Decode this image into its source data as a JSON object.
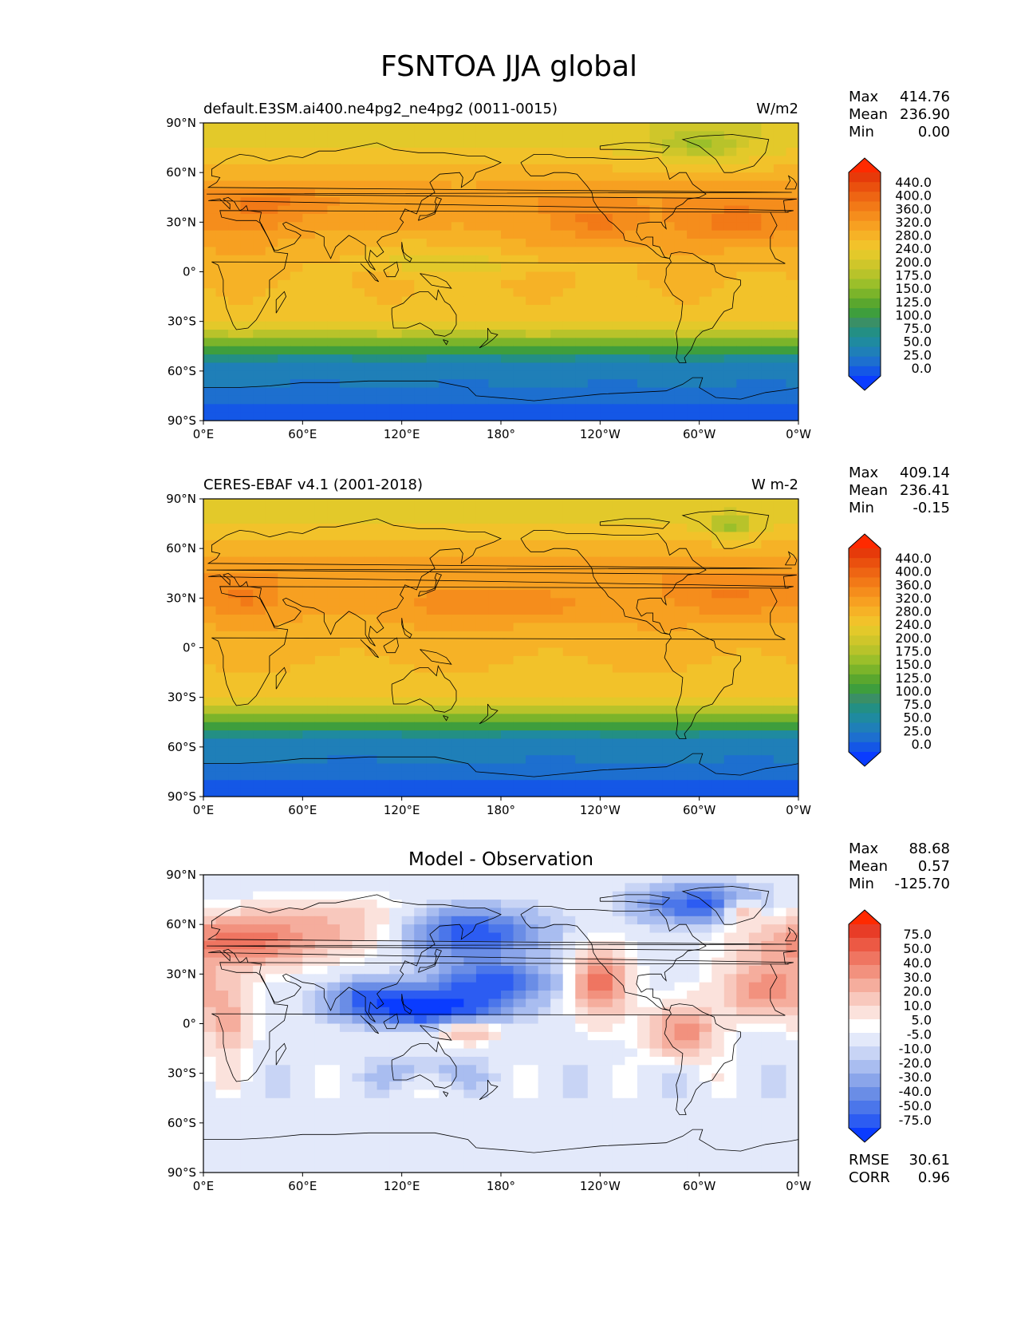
{
  "figure": {
    "title": "FSNTOA JJA global",
    "palette": {
      "standard": [
        "#0a3cff",
        "#1457e6",
        "#1d6fcf",
        "#1f7fb8",
        "#1f8aa0",
        "#238f84",
        "#3a8f66",
        "#3e9e3d",
        "#5aa72e",
        "#7bb42a",
        "#9bbf2a",
        "#b8c32a",
        "#cfc62a",
        "#e3c92a",
        "#f2c22a",
        "#f6b226",
        "#f7a021",
        "#f58d1c",
        "#f27917",
        "#ee6513",
        "#ea500e",
        "#e63a0a",
        "#ff2a00"
      ],
      "diff": [
        "#0a3cff",
        "#2c5cf2",
        "#4b76ea",
        "#6a8de6",
        "#8aa5ea",
        "#a9bdf0",
        "#c8d4f5",
        "#e3e9fa",
        "#ffffff",
        "#fbe2dc",
        "#f8c8bd",
        "#f5ad9d",
        "#f2917e",
        "#ef7561",
        "#ec5944",
        "#e83c27",
        "#ff2a00"
      ]
    },
    "x_ticks": [
      "0°E",
      "60°E",
      "120°E",
      "180°",
      "120°W",
      "60°W",
      "0°W"
    ],
    "y_ticks": [
      "90°N",
      "60°N",
      "30°N",
      "0°",
      "30°S",
      "60°S",
      "90°S"
    ],
    "colorbar_std_labels": [
      "440.0",
      "400.0",
      "360.0",
      "320.0",
      "280.0",
      "240.0",
      "200.0",
      "175.0",
      "150.0",
      "125.0",
      "100.0",
      "75.0",
      "50.0",
      "25.0",
      "0.0"
    ],
    "colorbar_diff_labels": [
      "75.0",
      "50.0",
      "40.0",
      "30.0",
      "20.0",
      "10.0",
      "5.0",
      "-5.0",
      "-10.0",
      "-20.0",
      "-30.0",
      "-40.0",
      "-50.0",
      "-75.0"
    ]
  },
  "chart_data": [
    {
      "type": "heatmap",
      "title": "default.E3SM.ai400.ne4pg2_ne4pg2 (0011-0015)",
      "units": "W/m2",
      "xlim": [
        0,
        360
      ],
      "ylim": [
        -90,
        90
      ],
      "stats": [
        {
          "label": "Max",
          "value": "414.76"
        },
        {
          "label": "Mean",
          "value": "236.90"
        },
        {
          "label": "Min",
          "value": "0.00"
        }
      ],
      "colorbar_levels": [
        0,
        25,
        50,
        75,
        100,
        125,
        150,
        175,
        200,
        240,
        280,
        320,
        360,
        400,
        440
      ]
    },
    {
      "type": "heatmap",
      "title": "CERES-EBAF v4.1 (2001-2018)",
      "units": "W m-2",
      "xlim": [
        0,
        360
      ],
      "ylim": [
        -90,
        90
      ],
      "stats": [
        {
          "label": "Max",
          "value": "409.14"
        },
        {
          "label": "Mean",
          "value": "236.41"
        },
        {
          "label": "Min",
          "value": "-0.15"
        }
      ],
      "colorbar_levels": [
        0,
        25,
        50,
        75,
        100,
        125,
        150,
        175,
        200,
        240,
        280,
        320,
        360,
        400,
        440
      ]
    },
    {
      "type": "heatmap",
      "title": "Model - Observation",
      "units": "",
      "xlim": [
        0,
        360
      ],
      "ylim": [
        -90,
        90
      ],
      "stats": [
        {
          "label": "Max",
          "value": "88.68"
        },
        {
          "label": "Mean",
          "value": "0.57"
        },
        {
          "label": "Min",
          "value": "-125.70"
        }
      ],
      "metrics": [
        {
          "label": "RMSE",
          "value": "30.61"
        },
        {
          "label": "CORR",
          "value": "0.96"
        }
      ],
      "colorbar_levels": [
        -75,
        -50,
        -40,
        -30,
        -20,
        -10,
        -5,
        5,
        10,
        20,
        30,
        40,
        50,
        75
      ]
    }
  ]
}
